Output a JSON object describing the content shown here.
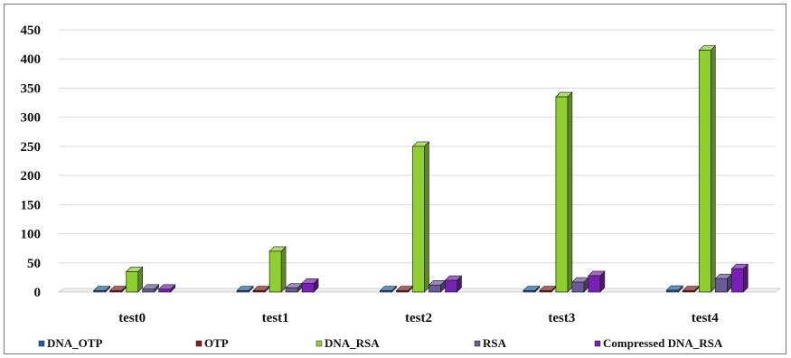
{
  "chart_data": {
    "type": "bar",
    "title": "",
    "xlabel": "",
    "ylabel": "",
    "categories": [
      "test0",
      "test1",
      "test2",
      "test3",
      "test4"
    ],
    "ylim": [
      0,
      450
    ],
    "yticks": [
      "0",
      "50",
      "100",
      "150",
      "200",
      "250",
      "300",
      "350",
      "400",
      "450"
    ],
    "grid": true,
    "legend_position": "bottom",
    "series": [
      {
        "name": "DNA_OTP",
        "color": "#1f5fa8",
        "values": [
          1,
          1,
          1,
          2,
          3
        ]
      },
      {
        "name": "OTP",
        "color": "#8b1a1a",
        "values": [
          0.5,
          0.5,
          0.5,
          0.5,
          0.5
        ]
      },
      {
        "name": "DNA_RSA",
        "color": "#8fcf2f",
        "values": [
          35,
          70,
          250,
          335,
          415
        ]
      },
      {
        "name": "RSA",
        "color": "#6a5a9a",
        "values": [
          5,
          7,
          12,
          17,
          23
        ]
      },
      {
        "name": "Compressed DNA_RSA",
        "color": "#7a1fb5",
        "values": [
          5,
          15,
          20,
          28,
          40
        ]
      }
    ]
  }
}
